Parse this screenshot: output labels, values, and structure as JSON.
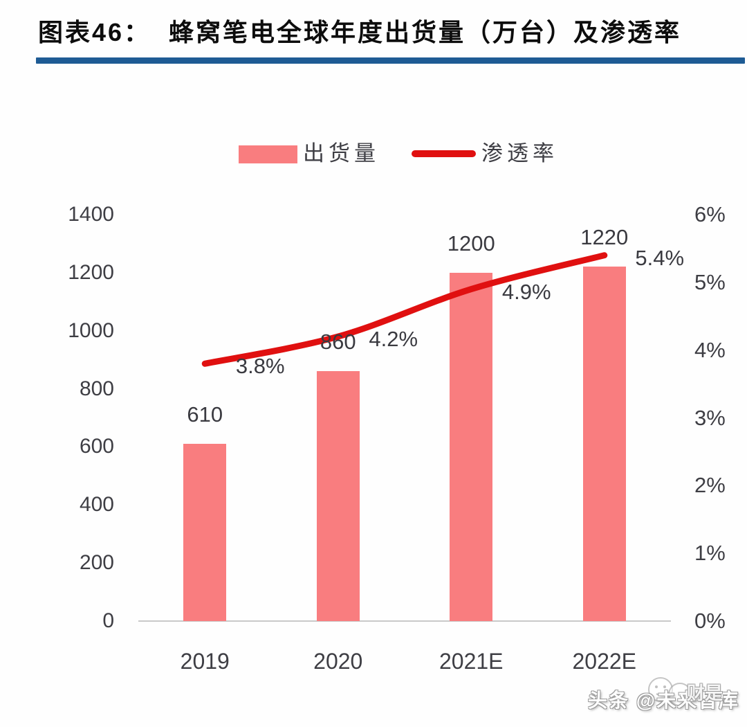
{
  "figure": {
    "label": "图表46：",
    "title": "蜂窝笔电全球年度出货量（万台）及渗透率"
  },
  "legend": {
    "bar_label": "出货量",
    "line_label": "渗透率"
  },
  "colors": {
    "bar": "#F97D7F",
    "line": "#E01010",
    "divider": "#1E5B94",
    "axis_line": "#C9C9C9",
    "tick_text": "#3E3E44"
  },
  "watermark": {
    "text": "头条 @未来智库",
    "stamp": "财是"
  },
  "chart_data": {
    "type": "bar+line",
    "title": "蜂窝笔电全球年度出货量（万台）及渗透率",
    "categories": [
      "2019",
      "2020",
      "2021E",
      "2022E"
    ],
    "series": [
      {
        "name": "出货量",
        "type": "bar",
        "axis": "left",
        "values": [
          610,
          860,
          1200,
          1220
        ],
        "labels": [
          "610",
          "860",
          "1200",
          "1220"
        ]
      },
      {
        "name": "渗透率",
        "type": "line",
        "axis": "right",
        "values": [
          3.8,
          4.2,
          4.9,
          5.4
        ],
        "labels": [
          "3.8%",
          "4.2%",
          "4.9%",
          "5.4%"
        ]
      }
    ],
    "left_axis": {
      "ticks": [
        0,
        200,
        400,
        600,
        800,
        1000,
        1200,
        1400
      ],
      "min": 0,
      "max": 1400
    },
    "right_axis": {
      "ticks": [
        "0%",
        "1%",
        "2%",
        "3%",
        "4%",
        "5%",
        "6%"
      ],
      "min": 0,
      "max": 6,
      "unit": "%"
    },
    "grid": false,
    "legend_position": "top-center"
  }
}
